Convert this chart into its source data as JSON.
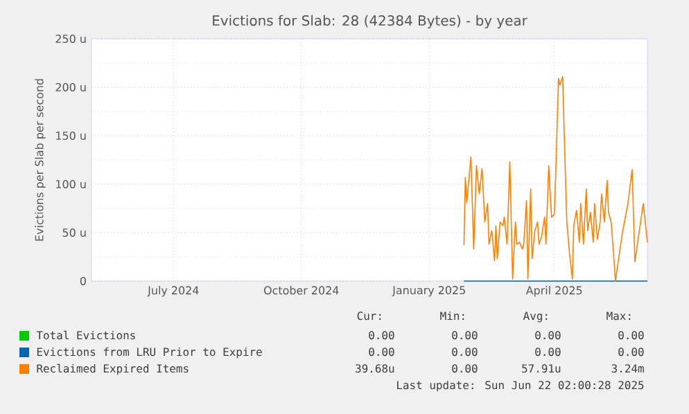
{
  "chart_data": {
    "type": "line",
    "title": "Evictions for Slab: 28 (42384 Bytes) - by year",
    "ylabel": "Evictions per Slab per second",
    "xlim": [
      "2024-05-18",
      "2025-06-22"
    ],
    "ylim": [
      0,
      250
    ],
    "xticks": [
      {
        "value": "2024-07-16",
        "label": "July 2024"
      },
      {
        "value": "2024-10-16",
        "label": "October 2024"
      },
      {
        "value": "2025-01-16",
        "label": "January 2025"
      },
      {
        "value": "2025-04-16",
        "label": "April 2025"
      }
    ],
    "yticks": [
      0,
      {
        "value": 50,
        "label": "50 u"
      },
      {
        "value": 100,
        "label": "100 u"
      },
      {
        "value": 150,
        "label": "150 u"
      },
      {
        "value": 200,
        "label": "200 u"
      },
      {
        "value": 250,
        "label": "250 u"
      }
    ],
    "grid": true,
    "legend": "bottom",
    "marker": "none",
    "line_style": "solid",
    "series": [
      {
        "name": "Total Evictions",
        "color": "#00cc00"
      },
      {
        "name": "Evictions from LRU Prior to Expire",
        "color": "#0066b3",
        "x": [
          "2025-02-10",
          "2025-06-22"
        ],
        "values": [
          0,
          0
        ]
      },
      {
        "name": "Reclaimed Expired Items",
        "color": "#ff8000",
        "x": [
          "2025-02-10",
          "2025-02-11",
          "2025-02-12",
          "2025-02-15",
          "2025-02-17",
          "2025-02-19",
          "2025-02-21",
          "2025-02-23",
          "2025-02-25",
          "2025-02-27",
          "2025-02-28",
          "2025-03-02",
          "2025-03-04",
          "2025-03-05",
          "2025-03-06",
          "2025-03-08",
          "2025-03-10",
          "2025-03-11",
          "2025-03-13",
          "2025-03-15",
          "2025-03-17",
          "2025-03-19",
          "2025-03-20",
          "2025-03-22",
          "2025-03-24",
          "2025-03-25",
          "2025-03-27",
          "2025-03-28",
          "2025-03-30",
          "2025-03-31",
          "2025-04-02",
          "2025-04-04",
          "2025-04-05",
          "2025-04-07",
          "2025-04-09",
          "2025-04-10",
          "2025-04-12",
          "2025-04-14",
          "2025-04-16",
          "2025-04-17",
          "2025-04-19",
          "2025-04-20",
          "2025-04-22",
          "2025-04-24",
          "2025-04-25",
          "2025-04-27",
          "2025-04-29",
          "2025-04-30",
          "2025-05-02",
          "2025-05-04",
          "2025-05-05",
          "2025-05-07",
          "2025-05-09",
          "2025-05-10",
          "2025-05-12",
          "2025-05-14",
          "2025-05-15",
          "2025-05-17",
          "2025-05-19",
          "2025-05-20",
          "2025-05-22",
          "2025-05-24",
          "2025-05-25",
          "2025-05-27",
          "2025-05-30",
          "2025-06-04",
          "2025-06-08",
          "2025-06-11",
          "2025-06-13",
          "2025-06-16",
          "2025-06-19",
          "2025-06-22"
        ],
        "values": [
          37,
          107,
          81,
          128,
          33,
          119,
          90,
          116,
          61,
          80,
          38,
          52,
          21,
          57,
          23,
          61,
          57,
          66,
          38,
          123,
          2,
          61,
          38,
          40,
          33,
          38,
          83,
          2,
          95,
          23,
          52,
          61,
          38,
          47,
          66,
          38,
          119,
          66,
          69,
          109,
          209,
          202,
          211,
          109,
          61,
          28,
          2,
          57,
          73,
          40,
          80,
          38,
          95,
          52,
          71,
          40,
          80,
          43,
          61,
          90,
          61,
          104,
          71,
          60,
          0,
          50,
          80,
          115,
          20,
          50,
          80,
          40
        ]
      }
    ],
    "annotations": [
      "Cur:",
      "Min:",
      "Avg:",
      "Max:",
      "0.00",
      "0.00",
      "0.00",
      "0.00",
      "0.00",
      "0.00",
      "0.00",
      "0.00",
      "39.68u",
      "0.00",
      "57.91u",
      "3.24m",
      "Last update: Sun Jun 22 02:00:28 2025"
    ]
  }
}
